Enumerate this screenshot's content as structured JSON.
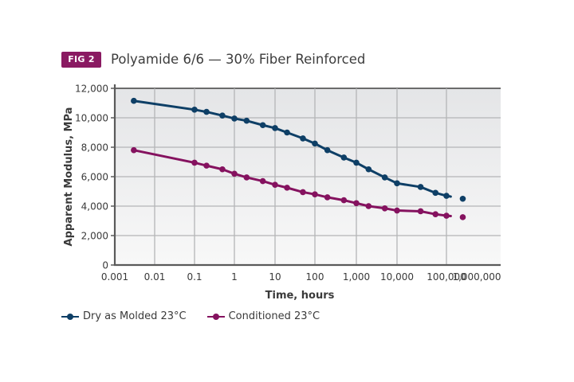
{
  "figure": {
    "badge": "FIG 2",
    "title": "Polyamide 6/6 — 30% Fiber Reinforced"
  },
  "colors": {
    "badge": "#8a1a62",
    "dry": "#0e3f66",
    "conditioned": "#85125f",
    "grid": "#b4b5b7",
    "axis": "#5a5a5a"
  },
  "chart_data": {
    "type": "line",
    "title": "Polyamide 6/6 — 30% Fiber Reinforced",
    "xlabel": "Time, hours",
    "ylabel": "Apparent Modulus, MPa",
    "xscale": "log",
    "xlim": [
      0.001,
      1000000
    ],
    "ylim": [
      0,
      12000
    ],
    "grid": true,
    "legend_position": "bottom-left",
    "x_ticks": [
      0.001,
      0.01,
      0.1,
      1,
      10,
      100,
      1000,
      10000,
      100000,
      1000000
    ],
    "x_tick_labels": [
      "0.001",
      "0.01",
      "0.1",
      "1",
      "10",
      "100",
      "1,000",
      "10,000",
      "100,000",
      "1,000,000"
    ],
    "y_ticks": [
      0,
      2000,
      4000,
      6000,
      8000,
      10000,
      12000
    ],
    "y_tick_labels": [
      "0",
      "2,000",
      "4,000",
      "6,000",
      "8,000",
      "10,000",
      "12,000"
    ],
    "series": [
      {
        "name": "Dry as Molded 23°C",
        "color": "#0e3f66",
        "x": [
          0.003,
          0.1,
          0.2,
          0.5,
          1,
          2,
          5,
          10,
          20,
          50,
          100,
          200,
          500,
          1000,
          2000,
          5000,
          10000,
          30000,
          60000,
          100000,
          200000
        ],
        "y": [
          11150,
          10550,
          10400,
          10150,
          9950,
          9800,
          9500,
          9300,
          9000,
          8600,
          8250,
          7800,
          7300,
          6950,
          6500,
          5950,
          5550,
          5300,
          4900,
          4700,
          4500
        ],
        "line_end_x": 120000
      },
      {
        "name": "Conditioned 23°C",
        "color": "#85125f",
        "x": [
          0.003,
          0.1,
          0.2,
          0.5,
          1,
          2,
          5,
          10,
          20,
          50,
          100,
          200,
          500,
          1000,
          2000,
          5000,
          10000,
          30000,
          60000,
          100000,
          200000
        ],
        "y": [
          7800,
          6950,
          6750,
          6500,
          6200,
          5950,
          5700,
          5450,
          5250,
          4950,
          4800,
          4600,
          4400,
          4200,
          4000,
          3850,
          3700,
          3650,
          3450,
          3350,
          3250
        ],
        "line_end_x": 120000
      }
    ]
  },
  "legend": [
    {
      "label": "Dry as Molded 23°C"
    },
    {
      "label": "Conditioned 23°C"
    }
  ]
}
